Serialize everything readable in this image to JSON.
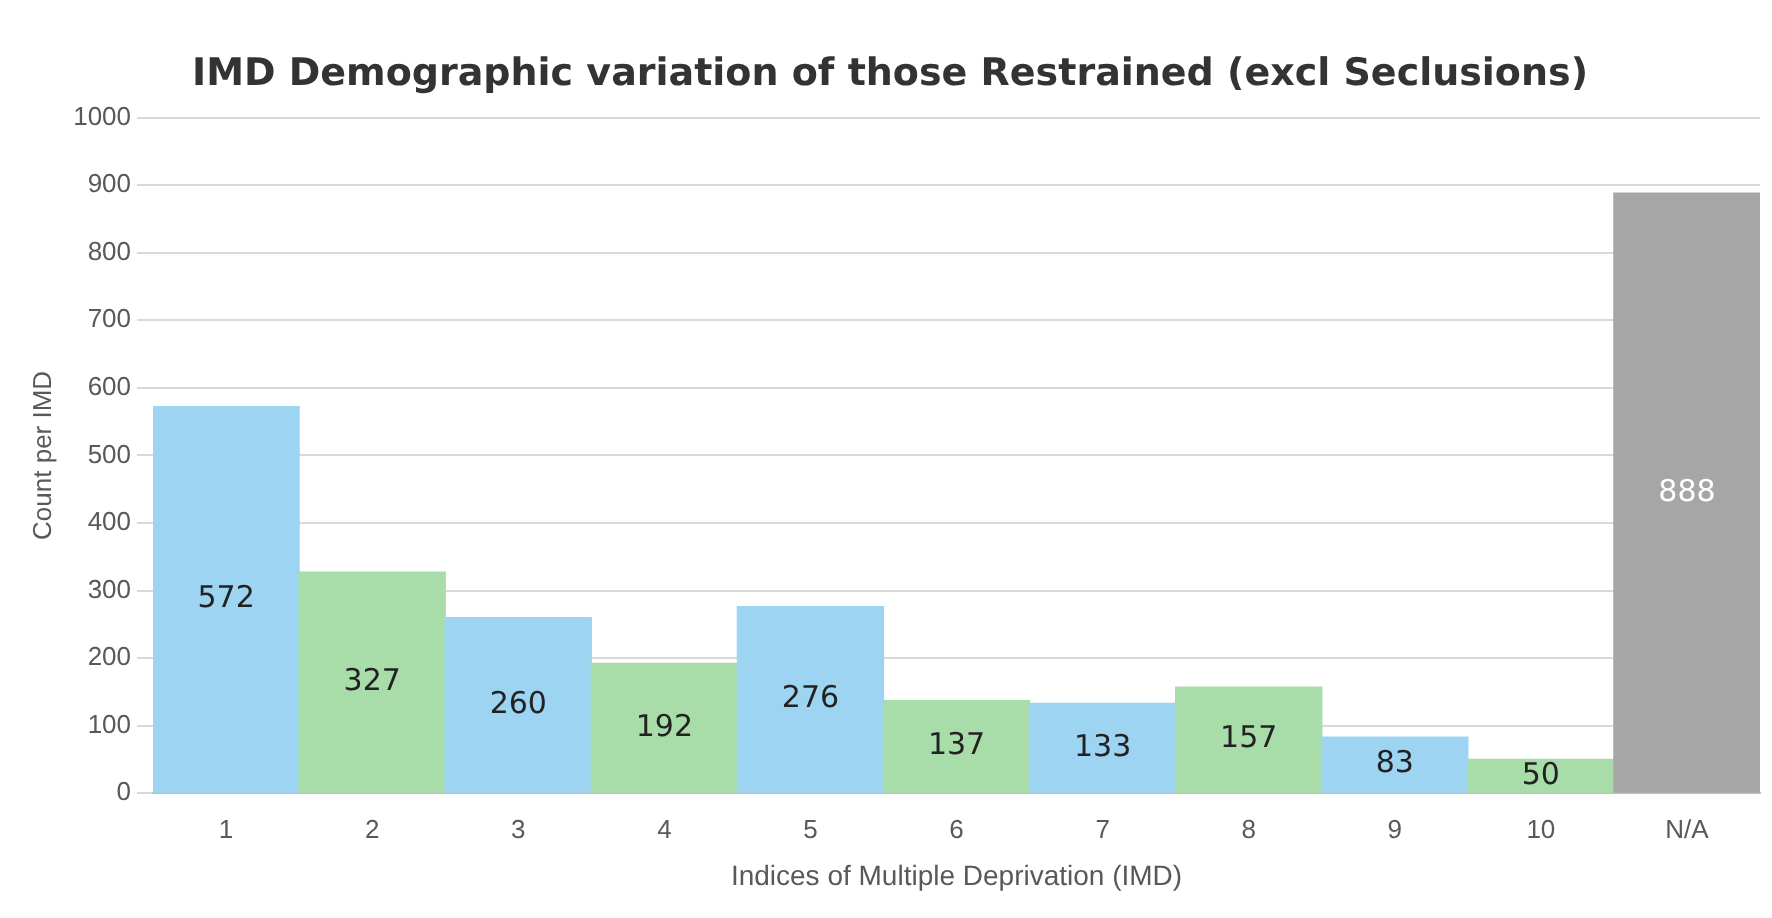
{
  "chart_data": {
    "type": "bar",
    "title": "IMD Demographic variation of those Restrained (excl Seclusions)",
    "xlabel": "Indices of Multiple Deprivation (IMD)",
    "ylabel": "Count per IMD",
    "categories": [
      "1",
      "2",
      "3",
      "4",
      "5",
      "6",
      "7",
      "8",
      "9",
      "10",
      "N/A"
    ],
    "values": [
      572,
      327,
      260,
      192,
      276,
      137,
      133,
      157,
      83,
      50,
      888
    ],
    "colors": [
      "#9dd4f2",
      "#a8dca8",
      "#9dd4f2",
      "#a8dca8",
      "#9dd4f2",
      "#a8dca8",
      "#9dd4f2",
      "#a8dca8",
      "#9dd4f2",
      "#a8dca8",
      "#a6a6a6"
    ],
    "ylim": [
      0,
      1000
    ],
    "yticks": [
      0,
      100,
      200,
      300,
      400,
      500,
      600,
      700,
      800,
      900,
      1000
    ],
    "grid": "y",
    "data_labels": true,
    "legend": false
  }
}
